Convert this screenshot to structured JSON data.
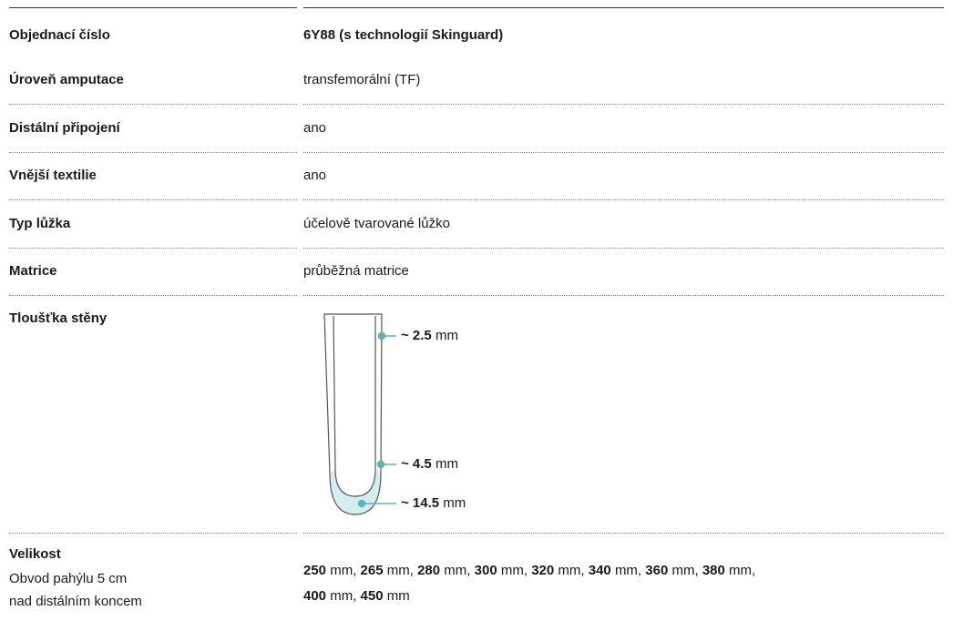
{
  "header": {
    "label": "Objednací číslo",
    "value": "6Y88 (s technologií Skinguard)"
  },
  "rows": [
    {
      "label": "Úroveň amputace",
      "value": "transfemorální (TF)"
    },
    {
      "label": "Distální připojení",
      "value": "ano"
    },
    {
      "label": "Vnější textilie",
      "value": "ano"
    },
    {
      "label": "Typ lůžka",
      "value": "účelově tvarované lůžko"
    },
    {
      "label": "Matrice",
      "value": "průběžná matrice"
    }
  ],
  "wall": {
    "label": "Tloušťka stěny",
    "callouts": [
      {
        "value": "~ 2.5",
        "unit": "mm"
      },
      {
        "value": "~ 4.5",
        "unit": "mm"
      },
      {
        "value": "~ 14.5",
        "unit": "mm"
      }
    ]
  },
  "size": {
    "label": "Velikost",
    "sublabel": [
      "Obvod pahýlu 5 cm",
      "nad distálním koncem"
    ],
    "lines": [
      [
        {
          "number": "250",
          "unit": "mm,"
        },
        {
          "number": "265",
          "unit": "mm,"
        },
        {
          "number": "280",
          "unit": "mm,"
        },
        {
          "number": "300",
          "unit": "mm,"
        },
        {
          "number": "320",
          "unit": "mm,"
        },
        {
          "number": "340",
          "unit": "mm,"
        },
        {
          "number": "360",
          "unit": "mm,"
        },
        {
          "number": "380",
          "unit": "mm,"
        }
      ],
      [
        {
          "number": "400",
          "unit": "mm,"
        },
        {
          "number": "450",
          "unit": "mm"
        }
      ]
    ]
  }
}
